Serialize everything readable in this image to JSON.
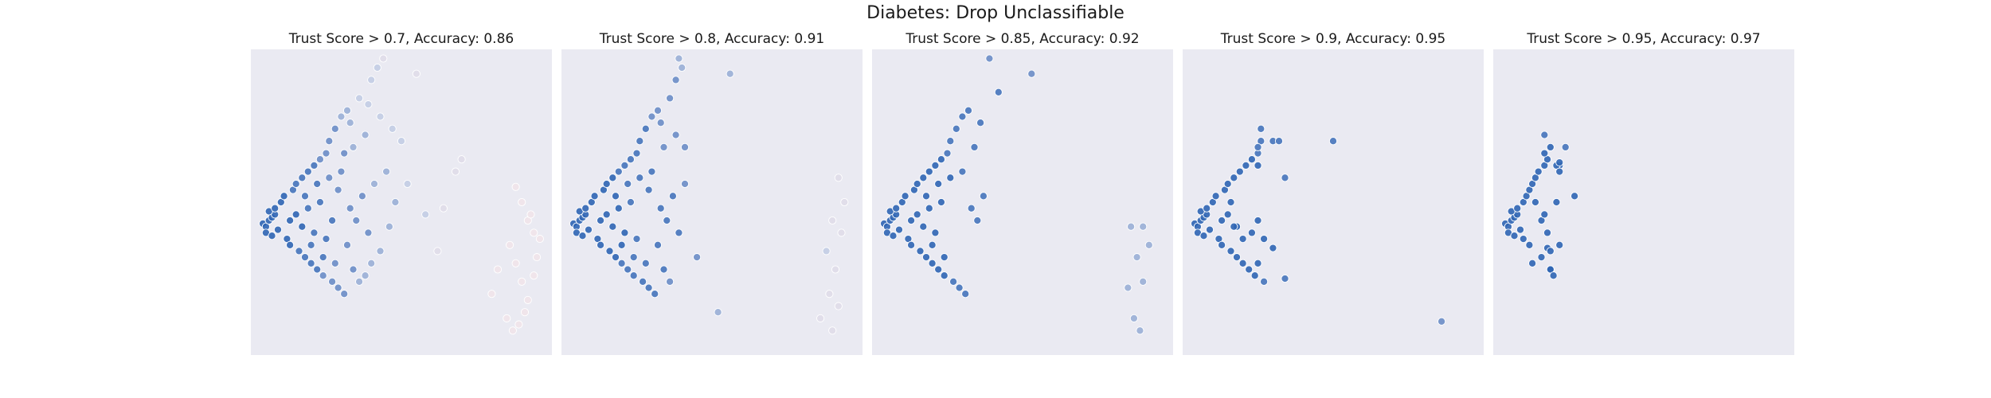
{
  "figure": {
    "title": "Diabetes: Drop Unclassifiable"
  },
  "chart_data": [
    {
      "type": "scatter",
      "title": "Trust Score > 0.7, Accuracy: 0.86",
      "xlim": [
        0,
        1
      ],
      "ylim": [
        0,
        1
      ],
      "grid": false,
      "legend": "none",
      "points": [
        [
          0.04,
          0.43
        ],
        [
          0.05,
          0.42
        ],
        [
          0.06,
          0.44
        ],
        [
          0.07,
          0.45
        ],
        [
          0.08,
          0.46
        ],
        [
          0.09,
          0.41
        ],
        [
          0.05,
          0.4
        ],
        [
          0.06,
          0.47
        ],
        [
          0.07,
          0.39
        ],
        [
          0.08,
          0.48
        ],
        [
          0.1,
          0.5
        ],
        [
          0.11,
          0.52
        ],
        [
          0.12,
          0.38
        ],
        [
          0.13,
          0.36
        ],
        [
          0.14,
          0.54
        ],
        [
          0.15,
          0.56
        ],
        [
          0.16,
          0.34
        ],
        [
          0.17,
          0.58
        ],
        [
          0.18,
          0.32
        ],
        [
          0.19,
          0.6
        ],
        [
          0.2,
          0.3
        ],
        [
          0.21,
          0.62
        ],
        [
          0.22,
          0.28
        ],
        [
          0.23,
          0.64
        ],
        [
          0.24,
          0.26
        ],
        [
          0.25,
          0.66
        ],
        [
          0.26,
          0.7
        ],
        [
          0.28,
          0.74
        ],
        [
          0.3,
          0.78
        ],
        [
          0.32,
          0.8
        ],
        [
          0.27,
          0.24
        ],
        [
          0.29,
          0.22
        ],
        [
          0.31,
          0.2
        ],
        [
          0.33,
          0.48
        ],
        [
          0.35,
          0.44
        ],
        [
          0.37,
          0.52
        ],
        [
          0.39,
          0.4
        ],
        [
          0.41,
          0.56
        ],
        [
          0.43,
          0.34
        ],
        [
          0.3,
          0.6
        ],
        [
          0.34,
          0.68
        ],
        [
          0.38,
          0.72
        ],
        [
          0.36,
          0.84
        ],
        [
          0.4,
          0.9
        ],
        [
          0.42,
          0.94
        ],
        [
          0.44,
          0.97
        ],
        [
          0.55,
          0.92
        ],
        [
          0.5,
          0.7
        ],
        [
          0.52,
          0.56
        ],
        [
          0.58,
          0.46
        ],
        [
          0.62,
          0.34
        ],
        [
          0.64,
          0.48
        ],
        [
          0.68,
          0.6
        ],
        [
          0.7,
          0.64
        ],
        [
          0.88,
          0.55
        ],
        [
          0.9,
          0.5
        ],
        [
          0.92,
          0.44
        ],
        [
          0.94,
          0.4
        ],
        [
          0.86,
          0.36
        ],
        [
          0.88,
          0.3
        ],
        [
          0.9,
          0.24
        ],
        [
          0.92,
          0.18
        ],
        [
          0.85,
          0.12
        ],
        [
          0.87,
          0.08
        ],
        [
          0.89,
          0.1
        ],
        [
          0.91,
          0.14
        ],
        [
          0.94,
          0.26
        ],
        [
          0.95,
          0.32
        ],
        [
          0.93,
          0.46
        ],
        [
          0.96,
          0.38
        ],
        [
          0.82,
          0.28
        ],
        [
          0.8,
          0.2
        ],
        [
          0.13,
          0.44
        ],
        [
          0.15,
          0.46
        ],
        [
          0.17,
          0.42
        ],
        [
          0.19,
          0.48
        ],
        [
          0.21,
          0.4
        ],
        [
          0.23,
          0.5
        ],
        [
          0.25,
          0.38
        ],
        [
          0.27,
          0.44
        ],
        [
          0.18,
          0.52
        ],
        [
          0.2,
          0.36
        ],
        [
          0.22,
          0.56
        ],
        [
          0.24,
          0.32
        ],
        [
          0.26,
          0.58
        ],
        [
          0.28,
          0.3
        ],
        [
          0.32,
          0.36
        ],
        [
          0.34,
          0.28
        ],
        [
          0.36,
          0.24
        ],
        [
          0.38,
          0.26
        ],
        [
          0.4,
          0.3
        ],
        [
          0.46,
          0.42
        ],
        [
          0.48,
          0.5
        ],
        [
          0.45,
          0.6
        ],
        [
          0.47,
          0.74
        ],
        [
          0.43,
          0.78
        ],
        [
          0.39,
          0.82
        ],
        [
          0.33,
          0.76
        ],
        [
          0.31,
          0.66
        ],
        [
          0.29,
          0.54
        ]
      ]
    },
    {
      "type": "scatter",
      "title": "Trust Score > 0.8, Accuracy: 0.91",
      "xlim": [
        0,
        1
      ],
      "ylim": [
        0,
        1
      ],
      "grid": false,
      "legend": "none",
      "points": [
        [
          0.04,
          0.43
        ],
        [
          0.05,
          0.42
        ],
        [
          0.06,
          0.44
        ],
        [
          0.07,
          0.45
        ],
        [
          0.08,
          0.46
        ],
        [
          0.09,
          0.41
        ],
        [
          0.05,
          0.4
        ],
        [
          0.06,
          0.47
        ],
        [
          0.07,
          0.39
        ],
        [
          0.08,
          0.48
        ],
        [
          0.1,
          0.5
        ],
        [
          0.11,
          0.52
        ],
        [
          0.12,
          0.38
        ],
        [
          0.13,
          0.36
        ],
        [
          0.14,
          0.54
        ],
        [
          0.15,
          0.56
        ],
        [
          0.16,
          0.34
        ],
        [
          0.17,
          0.58
        ],
        [
          0.18,
          0.32
        ],
        [
          0.19,
          0.6
        ],
        [
          0.2,
          0.3
        ],
        [
          0.21,
          0.62
        ],
        [
          0.22,
          0.28
        ],
        [
          0.23,
          0.64
        ],
        [
          0.24,
          0.26
        ],
        [
          0.25,
          0.66
        ],
        [
          0.26,
          0.7
        ],
        [
          0.28,
          0.74
        ],
        [
          0.3,
          0.78
        ],
        [
          0.32,
          0.8
        ],
        [
          0.27,
          0.24
        ],
        [
          0.29,
          0.22
        ],
        [
          0.31,
          0.2
        ],
        [
          0.33,
          0.48
        ],
        [
          0.35,
          0.44
        ],
        [
          0.37,
          0.52
        ],
        [
          0.39,
          0.4
        ],
        [
          0.41,
          0.56
        ],
        [
          0.3,
          0.6
        ],
        [
          0.34,
          0.68
        ],
        [
          0.38,
          0.72
        ],
        [
          0.36,
          0.84
        ],
        [
          0.38,
          0.9
        ],
        [
          0.4,
          0.94
        ],
        [
          0.39,
          0.97
        ],
        [
          0.56,
          0.92
        ],
        [
          0.41,
          0.68
        ],
        [
          0.45,
          0.32
        ],
        [
          0.52,
          0.14
        ],
        [
          0.92,
          0.58
        ],
        [
          0.94,
          0.5
        ],
        [
          0.9,
          0.44
        ],
        [
          0.93,
          0.4
        ],
        [
          0.88,
          0.34
        ],
        [
          0.91,
          0.28
        ],
        [
          0.89,
          0.2
        ],
        [
          0.92,
          0.16
        ],
        [
          0.86,
          0.12
        ],
        [
          0.9,
          0.08
        ],
        [
          0.13,
          0.44
        ],
        [
          0.15,
          0.46
        ],
        [
          0.17,
          0.42
        ],
        [
          0.19,
          0.48
        ],
        [
          0.21,
          0.4
        ],
        [
          0.23,
          0.5
        ],
        [
          0.25,
          0.38
        ],
        [
          0.18,
          0.52
        ],
        [
          0.2,
          0.36
        ],
        [
          0.22,
          0.56
        ],
        [
          0.24,
          0.32
        ],
        [
          0.26,
          0.58
        ],
        [
          0.28,
          0.3
        ],
        [
          0.32,
          0.36
        ],
        [
          0.34,
          0.28
        ],
        [
          0.36,
          0.24
        ],
        [
          0.29,
          0.54
        ],
        [
          0.33,
          0.76
        ]
      ]
    },
    {
      "type": "scatter",
      "title": "Trust Score > 0.85, Accuracy: 0.92",
      "xlim": [
        0,
        1
      ],
      "ylim": [
        0,
        1
      ],
      "grid": false,
      "legend": "none",
      "points": [
        [
          0.04,
          0.43
        ],
        [
          0.05,
          0.42
        ],
        [
          0.06,
          0.44
        ],
        [
          0.07,
          0.45
        ],
        [
          0.08,
          0.46
        ],
        [
          0.09,
          0.41
        ],
        [
          0.05,
          0.4
        ],
        [
          0.06,
          0.47
        ],
        [
          0.07,
          0.39
        ],
        [
          0.08,
          0.48
        ],
        [
          0.1,
          0.5
        ],
        [
          0.11,
          0.52
        ],
        [
          0.12,
          0.38
        ],
        [
          0.13,
          0.36
        ],
        [
          0.14,
          0.54
        ],
        [
          0.15,
          0.56
        ],
        [
          0.16,
          0.34
        ],
        [
          0.17,
          0.58
        ],
        [
          0.18,
          0.32
        ],
        [
          0.19,
          0.6
        ],
        [
          0.2,
          0.3
        ],
        [
          0.21,
          0.62
        ],
        [
          0.22,
          0.28
        ],
        [
          0.23,
          0.64
        ],
        [
          0.24,
          0.26
        ],
        [
          0.25,
          0.66
        ],
        [
          0.26,
          0.7
        ],
        [
          0.28,
          0.74
        ],
        [
          0.3,
          0.78
        ],
        [
          0.32,
          0.8
        ],
        [
          0.27,
          0.24
        ],
        [
          0.29,
          0.22
        ],
        [
          0.31,
          0.2
        ],
        [
          0.33,
          0.48
        ],
        [
          0.35,
          0.44
        ],
        [
          0.37,
          0.52
        ],
        [
          0.3,
          0.6
        ],
        [
          0.34,
          0.68
        ],
        [
          0.36,
          0.76
        ],
        [
          0.39,
          0.97
        ],
        [
          0.53,
          0.92
        ],
        [
          0.42,
          0.86
        ],
        [
          0.86,
          0.42
        ],
        [
          0.9,
          0.42
        ],
        [
          0.92,
          0.36
        ],
        [
          0.88,
          0.32
        ],
        [
          0.9,
          0.24
        ],
        [
          0.85,
          0.22
        ],
        [
          0.87,
          0.12
        ],
        [
          0.89,
          0.08
        ],
        [
          0.13,
          0.44
        ],
        [
          0.15,
          0.46
        ],
        [
          0.17,
          0.42
        ],
        [
          0.19,
          0.48
        ],
        [
          0.21,
          0.4
        ],
        [
          0.23,
          0.5
        ],
        [
          0.18,
          0.52
        ],
        [
          0.2,
          0.36
        ],
        [
          0.22,
          0.56
        ],
        [
          0.24,
          0.32
        ],
        [
          0.26,
          0.58
        ]
      ]
    },
    {
      "type": "scatter",
      "title": "Trust Score > 0.9, Accuracy: 0.95",
      "xlim": [
        0,
        1
      ],
      "ylim": [
        0,
        1
      ],
      "grid": false,
      "legend": "none",
      "points": [
        [
          0.04,
          0.43
        ],
        [
          0.05,
          0.42
        ],
        [
          0.06,
          0.44
        ],
        [
          0.07,
          0.45
        ],
        [
          0.08,
          0.46
        ],
        [
          0.09,
          0.41
        ],
        [
          0.05,
          0.4
        ],
        [
          0.06,
          0.47
        ],
        [
          0.07,
          0.39
        ],
        [
          0.08,
          0.48
        ],
        [
          0.1,
          0.5
        ],
        [
          0.11,
          0.52
        ],
        [
          0.12,
          0.38
        ],
        [
          0.13,
          0.36
        ],
        [
          0.14,
          0.54
        ],
        [
          0.15,
          0.56
        ],
        [
          0.16,
          0.34
        ],
        [
          0.17,
          0.58
        ],
        [
          0.18,
          0.32
        ],
        [
          0.19,
          0.6
        ],
        [
          0.2,
          0.3
        ],
        [
          0.21,
          0.62
        ],
        [
          0.22,
          0.28
        ],
        [
          0.23,
          0.64
        ],
        [
          0.24,
          0.26
        ],
        [
          0.25,
          0.66
        ],
        [
          0.26,
          0.7
        ],
        [
          0.27,
          0.24
        ],
        [
          0.18,
          0.42
        ],
        [
          0.2,
          0.38
        ],
        [
          0.23,
          0.4
        ],
        [
          0.25,
          0.44
        ],
        [
          0.27,
          0.38
        ],
        [
          0.3,
          0.35
        ],
        [
          0.25,
          0.3
        ],
        [
          0.34,
          0.25
        ],
        [
          0.25,
          0.62
        ],
        [
          0.3,
          0.7
        ],
        [
          0.26,
          0.74
        ],
        [
          0.32,
          0.7
        ],
        [
          0.25,
          0.68
        ],
        [
          0.5,
          0.7
        ],
        [
          0.86,
          0.11
        ],
        [
          0.34,
          0.58
        ],
        [
          0.13,
          0.44
        ],
        [
          0.15,
          0.46
        ],
        [
          0.17,
          0.42
        ],
        [
          0.16,
          0.5
        ]
      ]
    },
    {
      "type": "scatter",
      "title": "Trust Score > 0.95, Accuracy: 0.97",
      "xlim": [
        0,
        1
      ],
      "ylim": [
        0,
        1
      ],
      "grid": false,
      "legend": "none",
      "points": [
        [
          0.04,
          0.43
        ],
        [
          0.05,
          0.42
        ],
        [
          0.06,
          0.44
        ],
        [
          0.07,
          0.45
        ],
        [
          0.08,
          0.46
        ],
        [
          0.09,
          0.41
        ],
        [
          0.05,
          0.4
        ],
        [
          0.06,
          0.47
        ],
        [
          0.07,
          0.39
        ],
        [
          0.08,
          0.48
        ],
        [
          0.1,
          0.5
        ],
        [
          0.11,
          0.52
        ],
        [
          0.1,
          0.38
        ],
        [
          0.12,
          0.36
        ],
        [
          0.12,
          0.54
        ],
        [
          0.13,
          0.56
        ],
        [
          0.13,
          0.3
        ],
        [
          0.14,
          0.58
        ],
        [
          0.15,
          0.6
        ],
        [
          0.16,
          0.32
        ],
        [
          0.17,
          0.62
        ],
        [
          0.18,
          0.64
        ],
        [
          0.19,
          0.28
        ],
        [
          0.17,
          0.66
        ],
        [
          0.14,
          0.5
        ],
        [
          0.16,
          0.44
        ],
        [
          0.18,
          0.4
        ],
        [
          0.22,
          0.62
        ],
        [
          0.21,
          0.5
        ],
        [
          0.18,
          0.35
        ],
        [
          0.19,
          0.28
        ],
        [
          0.2,
          0.26
        ],
        [
          0.21,
          0.62
        ],
        [
          0.19,
          0.68
        ],
        [
          0.22,
          0.63
        ],
        [
          0.17,
          0.72
        ],
        [
          0.24,
          0.68
        ],
        [
          0.22,
          0.6
        ],
        [
          0.27,
          0.52
        ],
        [
          0.22,
          0.36
        ],
        [
          0.19,
          0.34
        ],
        [
          0.17,
          0.46
        ]
      ]
    }
  ]
}
